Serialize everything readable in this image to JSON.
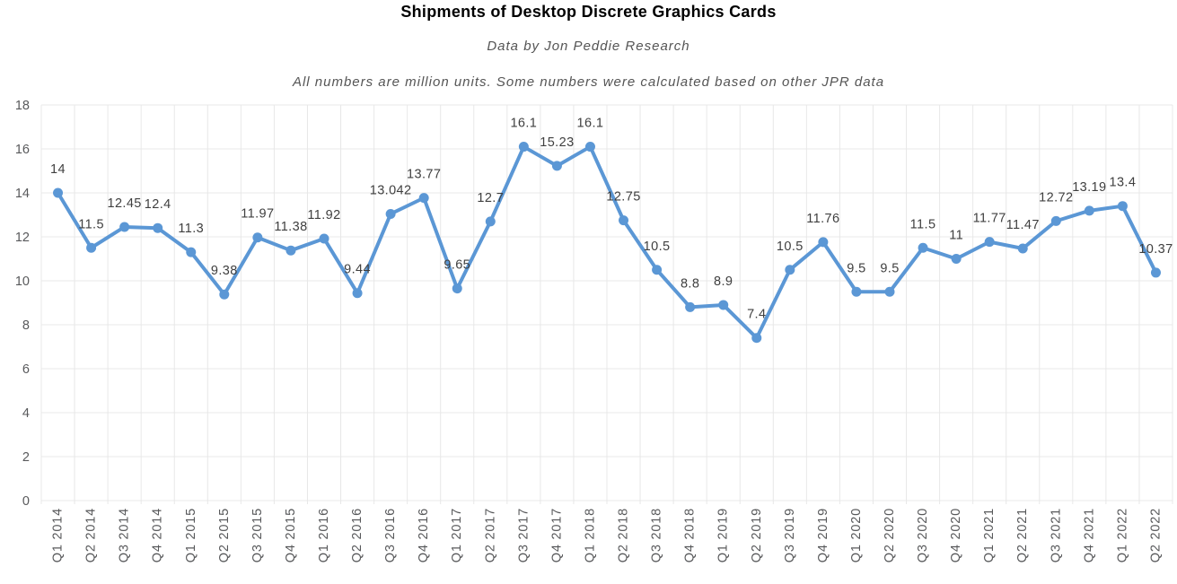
{
  "chart_data": {
    "type": "line",
    "title": "Shipments of Desktop Discrete Graphics Cards",
    "subtitle": "Data by Jon Peddie Research",
    "note": "All numbers are million units. Some numbers were calculated based on other JPR data",
    "unit": "million units",
    "categories": [
      "Q1 2014",
      "Q2 2014",
      "Q3 2014",
      "Q4 2014",
      "Q1 2015",
      "Q2 2015",
      "Q3 2015",
      "Q4 2015",
      "Q1 2016",
      "Q2 2016",
      "Q3 2016",
      "Q4 2016",
      "Q1 2017",
      "Q2 2017",
      "Q3 2017",
      "Q4 2017",
      "Q1 2018",
      "Q2 2018",
      "Q3 2018",
      "Q4 2018",
      "Q1 2019",
      "Q2 2019",
      "Q3 2019",
      "Q4 2019",
      "Q1 2020",
      "Q2 2020",
      "Q3 2020",
      "Q4 2020",
      "Q1 2021",
      "Q2 2021",
      "Q3 2021",
      "Q4 2021",
      "Q1 2022",
      "Q2 2022"
    ],
    "values": [
      14,
      11.5,
      12.45,
      12.4,
      11.3,
      9.38,
      11.97,
      11.38,
      11.92,
      9.44,
      13.042,
      13.77,
      9.65,
      12.7,
      16.1,
      15.23,
      16.1,
      12.75,
      10.5,
      8.8,
      8.9,
      7.4,
      10.5,
      11.76,
      9.5,
      9.5,
      11.5,
      11,
      11.77,
      11.47,
      12.72,
      13.19,
      13.4,
      10.37
    ],
    "data_labels": [
      "14",
      "11.5",
      "12.45",
      "12.4",
      "11.3",
      "9.38",
      "11.97",
      "11.38",
      "11.92",
      "9.44",
      "13.042",
      "13.77",
      "9.65",
      "12.7",
      "16.1",
      "15.23",
      "16.1",
      "12.75",
      "10.5",
      "8.8",
      "8.9",
      "7.4",
      "10.5",
      "11.76",
      "9.5",
      "9.5",
      "11.5",
      "11",
      "11.77",
      "11.47",
      "12.72",
      "13.19",
      "13.4",
      "10.37"
    ],
    "xlabel": "",
    "ylabel": "",
    "ylim": [
      0,
      18
    ],
    "ytick_step": 2,
    "yticks": [
      0,
      2,
      4,
      6,
      8,
      10,
      12,
      14,
      16,
      18
    ],
    "grid": true,
    "legend": "none",
    "colors": {
      "line": "#5b97d5",
      "marker": "#5b97d5",
      "grid": "#e8e8e8",
      "axis_text": "#58595b",
      "data_label": "#3f3f3f",
      "title": "#000000",
      "subtitle": "#555555"
    }
  }
}
